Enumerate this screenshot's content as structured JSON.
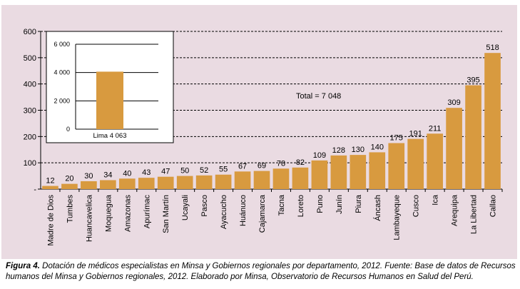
{
  "chart_data": [
    {
      "type": "bar",
      "categories": [
        "Madre de Dios",
        "Tumbes",
        "Huancavelica",
        "Moquegua",
        "Amazonas",
        "Apurímac",
        "San Martín",
        "Ucayali",
        "Pasco",
        "Ayacucho",
        "Huánuco",
        "Cajamarca",
        "Tacna",
        "Loreto",
        "Puno",
        "Junín",
        "Piura",
        "Áncash",
        "Lambayeque",
        "Cusco",
        "Ica",
        "Arequipa",
        "La Libertad",
        "Callao"
      ],
      "values": [
        12,
        20,
        30,
        34,
        40,
        43,
        47,
        50,
        52,
        55,
        67,
        69,
        78,
        82,
        109,
        128,
        130,
        140,
        175,
        191,
        211,
        309,
        395,
        518
      ],
      "value_labels": [
        "12",
        "20",
        "30",
        "34",
        "40",
        "43",
        "47",
        "50",
        "52",
        "55",
        "67",
        "69",
        "78",
        "82",
        "109",
        "128",
        "130",
        "140",
        "175",
        "191",
        "211",
        "309",
        "395",
        "518"
      ],
      "yticks": [
        "600",
        "500",
        "400",
        "300",
        "200",
        "100",
        "-"
      ],
      "ylim": [
        0,
        600
      ],
      "grid": true,
      "bar_color": "#d89a3f",
      "annotation": "Total = 7 048"
    },
    {
      "type": "bar",
      "categories": [
        "Lima 4 063"
      ],
      "values": [
        4063
      ],
      "yticks": [
        "6 000",
        "4 000",
        "2 000",
        "0"
      ],
      "ylim": [
        0,
        6000
      ],
      "grid": true,
      "bar_color": "#d89a3f"
    }
  ],
  "caption": {
    "label": "Figura 4.",
    "text": " Dotación de médicos especialistas en Minsa y Gobiernos regionales por departamento, 2012. Fuente: Base de datos de Recursos humanos del Minsa y Gobiernos regionales, 2012. Elaborado por Minsa, Observatorio de Recursos Humanos en Salud del Perú."
  }
}
